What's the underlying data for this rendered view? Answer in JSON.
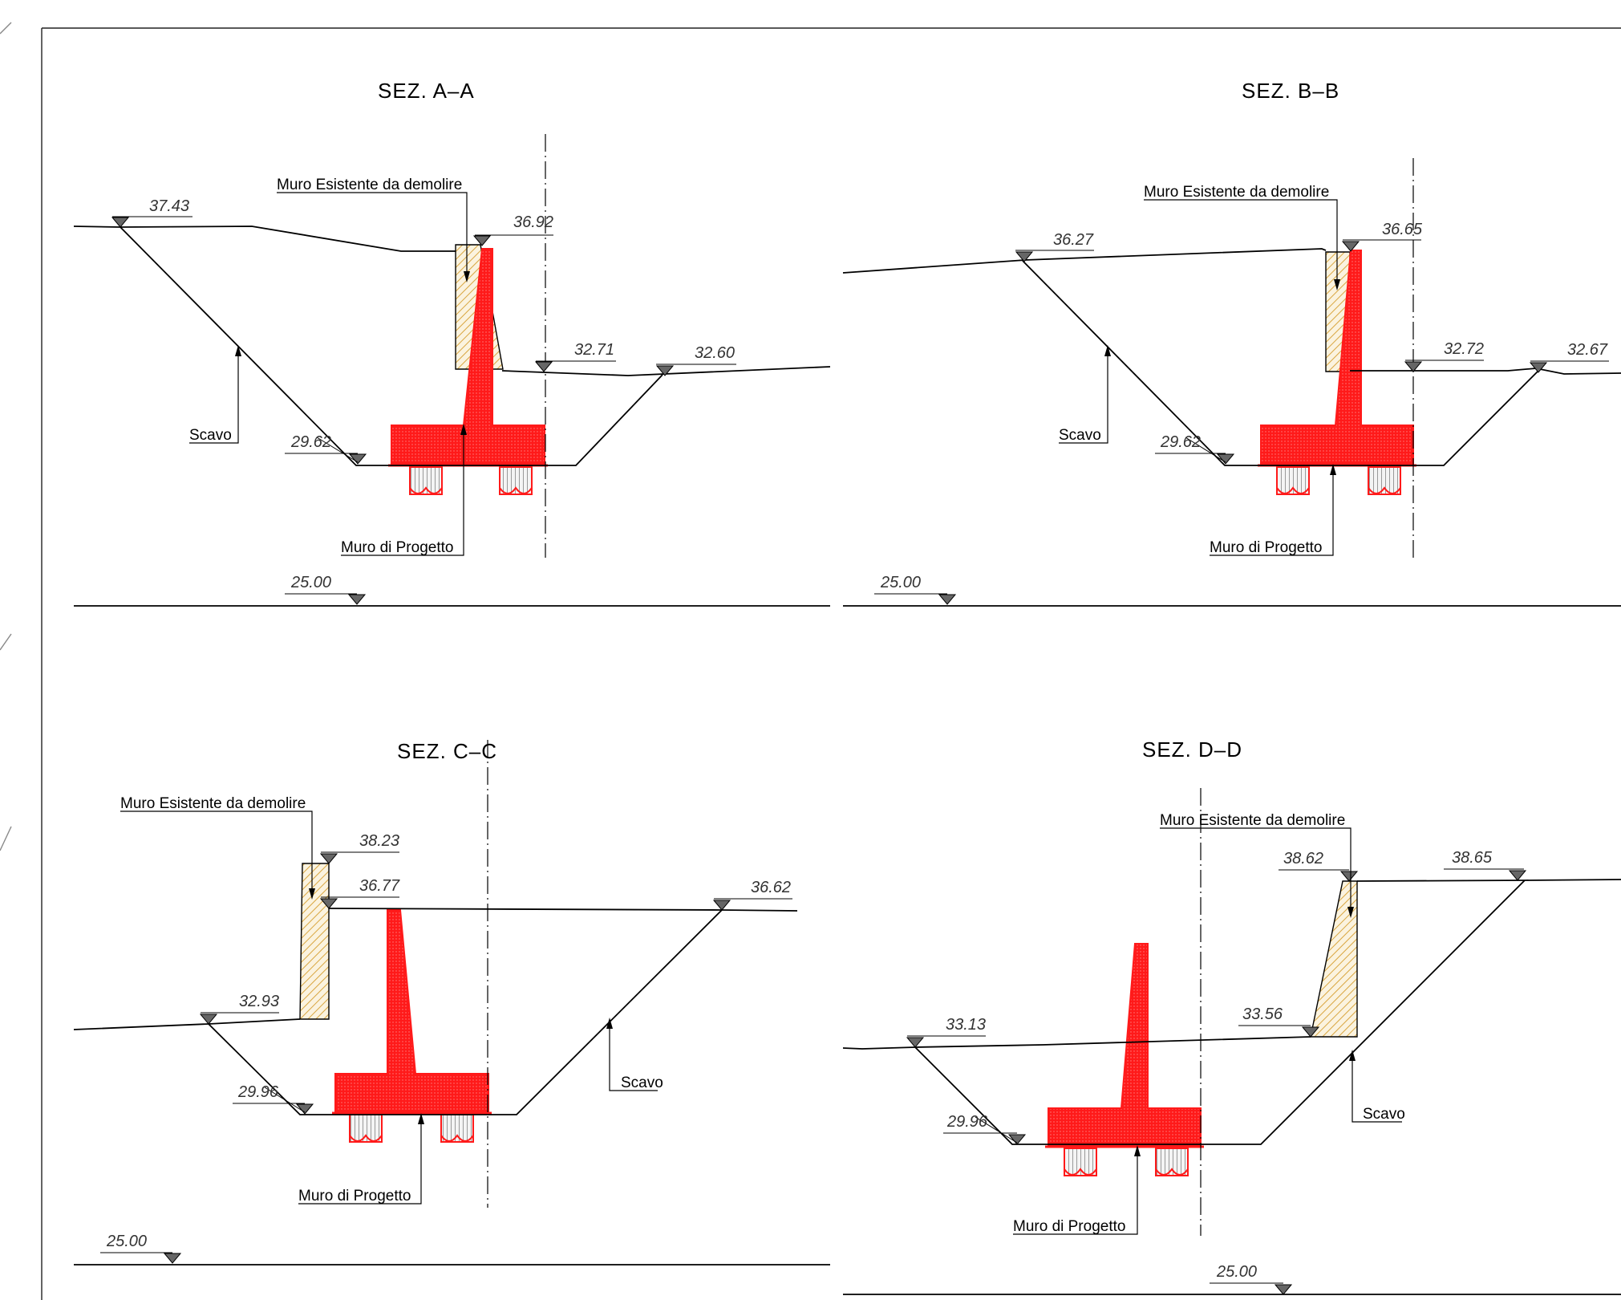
{
  "sections": {
    "a": {
      "title": "SEZ. A–A",
      "existing_wall": "Muro Esistente da demolire",
      "project_wall": "Muro di Progetto",
      "excavation": "Scavo",
      "levels": [
        "37.43",
        "36.92",
        "32.71",
        "32.60",
        "29.62",
        "25.00"
      ]
    },
    "b": {
      "title": "SEZ. B–B",
      "existing_wall": "Muro Esistente da demolire",
      "project_wall": "Muro di Progetto",
      "excavation": "Scavo",
      "levels": [
        "36.27",
        "36.65",
        "32.72",
        "32.67",
        "29.62",
        "25.00"
      ]
    },
    "c": {
      "title": "SEZ. C–C",
      "existing_wall": "Muro Esistente da demolire",
      "project_wall": "Muro di Progetto",
      "excavation": "Scavo",
      "levels": [
        "38.23",
        "36.77",
        "36.62",
        "32.93",
        "29.96",
        "25.00"
      ]
    },
    "d": {
      "title": "SEZ. D–D",
      "existing_wall": "Muro Esistente da demolire",
      "project_wall": "Muro di Progetto",
      "excavation": "Scavo",
      "levels": [
        "38.62",
        "38.65",
        "33.13",
        "33.56",
        "29.96",
        "25.00"
      ]
    }
  },
  "colors": {
    "project_wall": "#ff1a1a",
    "existing_wall_hatch": "#d9a640",
    "line": "#000000",
    "level_marker": "#666666"
  }
}
